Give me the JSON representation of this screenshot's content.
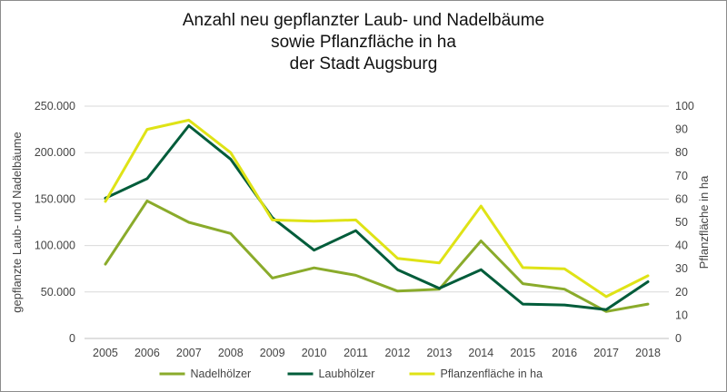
{
  "chart_data": {
    "type": "line",
    "title_lines": [
      "Anzahl neu gepflanzter Laub- und Nadelbäume",
      "sowie Pflanzfläche in ha",
      "der Stadt Augsburg"
    ],
    "x": [
      2005,
      2006,
      2007,
      2008,
      2009,
      2010,
      2011,
      2012,
      2013,
      2014,
      2015,
      2016,
      2017,
      2018
    ],
    "x_tick_labels": [
      "2005",
      "2006",
      "2007",
      "2008",
      "2009",
      "2010",
      "2011",
      "2012",
      "2013",
      "2014",
      "2015",
      "2016",
      "2017",
      "2018"
    ],
    "ylabel": "gepflanzte Laub- und Nadelbäume",
    "y2label": "Pflanzfläche in ha",
    "ylim": [
      0,
      250000
    ],
    "y2lim": [
      0,
      100
    ],
    "y_ticks": [
      0,
      50000,
      100000,
      150000,
      200000,
      250000
    ],
    "y_tick_labels": [
      "0",
      "50.000",
      "100.000",
      "150.000",
      "200.000",
      "250.000"
    ],
    "y2_ticks": [
      0,
      10,
      20,
      30,
      40,
      50,
      60,
      70,
      80,
      90,
      100
    ],
    "y2_tick_labels": [
      "0",
      "10",
      "20",
      "30",
      "40",
      "50",
      "60",
      "70",
      "80",
      "90",
      "100"
    ],
    "grid": "horizontal",
    "legend_position": "bottom",
    "series": [
      {
        "name": "Nadelhölzer",
        "axis": "left",
        "color": "#8aab2b",
        "values": [
          80000,
          148000,
          125000,
          113000,
          65000,
          76000,
          68000,
          51000,
          53000,
          105000,
          59000,
          53000,
          29000,
          37000
        ]
      },
      {
        "name": "Laubhölzer",
        "axis": "left",
        "color": "#005c3a",
        "values": [
          151000,
          172000,
          229000,
          193000,
          130000,
          95000,
          116000,
          74000,
          54000,
          74000,
          37000,
          36000,
          31000,
          61000
        ]
      },
      {
        "name": "Pflanzenfläche in ha",
        "axis": "right",
        "color": "#dfe316",
        "values": [
          59,
          90,
          94,
          80,
          51,
          50.5,
          51,
          34.5,
          32.5,
          57,
          30.5,
          30,
          18,
          27
        ]
      }
    ]
  }
}
